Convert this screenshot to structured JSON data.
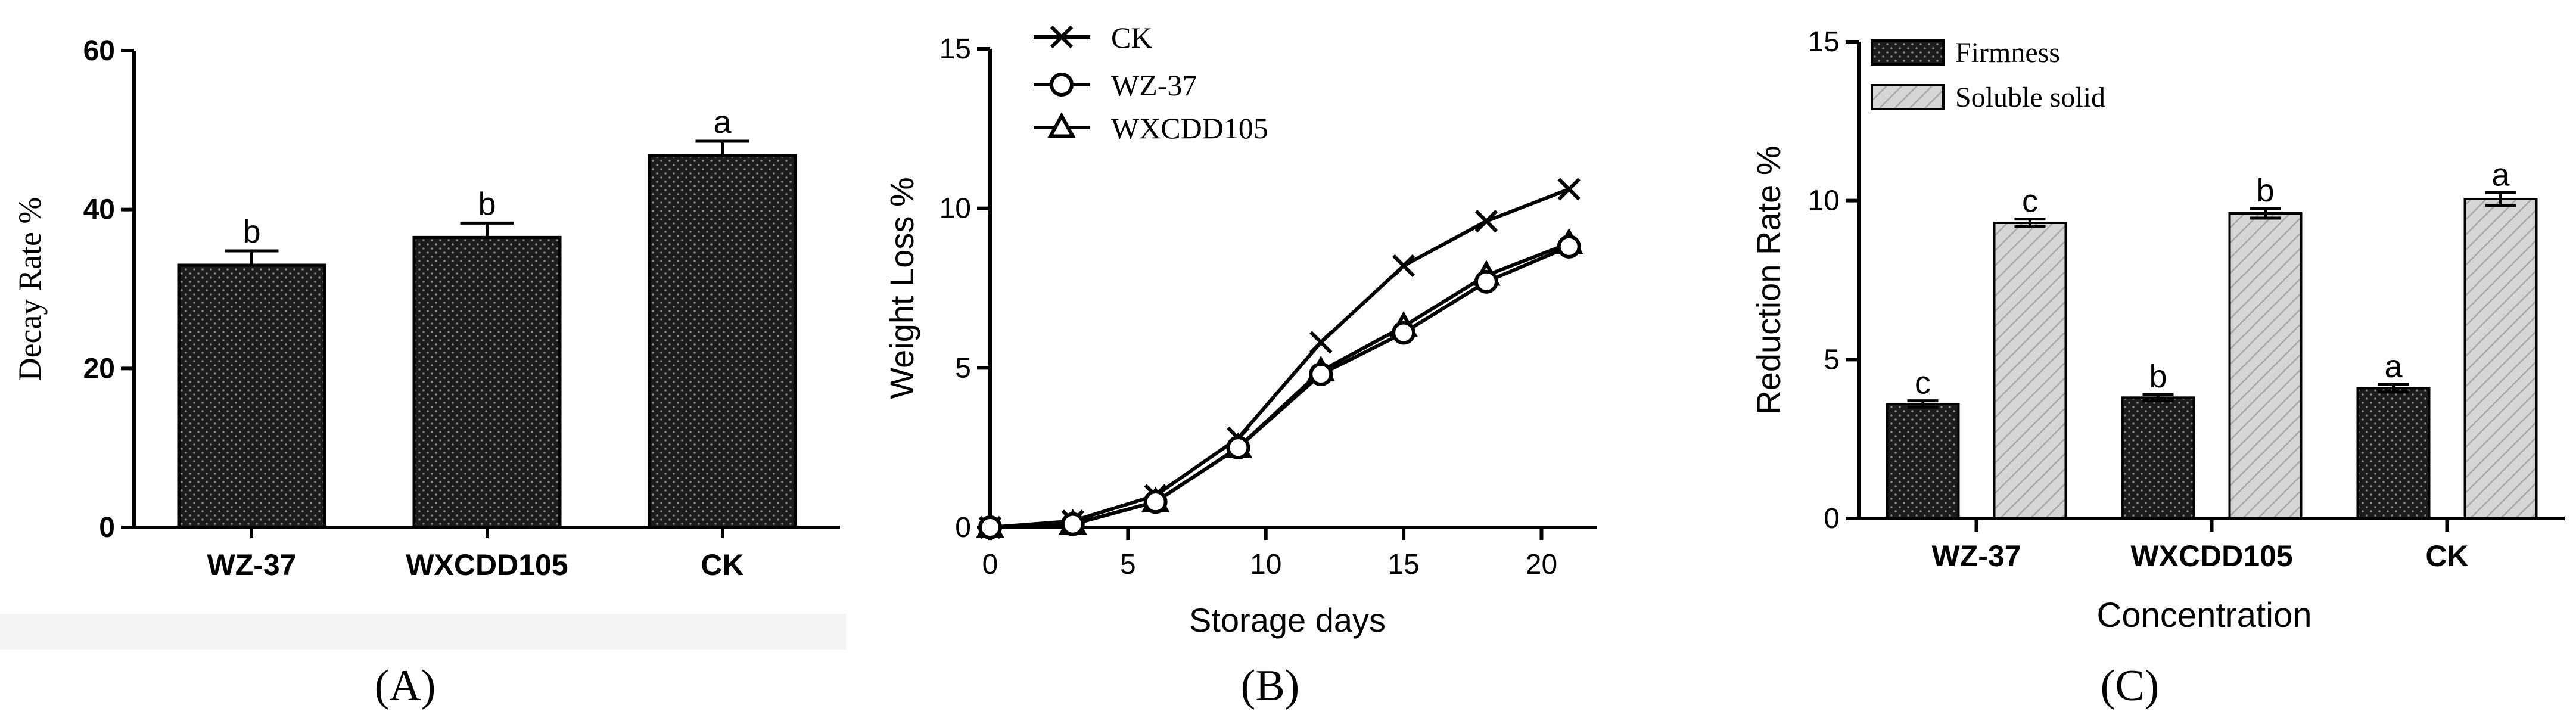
{
  "colors": {
    "firmness_fill": "#1c1c1c",
    "soluble_fill": "#d6d6d6",
    "axis": "#000000",
    "bottom_strip": "#f3f3f3"
  },
  "panel_labels": [
    "(A)",
    "(B)",
    "(C)"
  ],
  "chart_data": [
    {
      "type": "bar",
      "ylabel": "Decay Rate %",
      "xlabel": "",
      "ylim": [
        0,
        60
      ],
      "yticks": [
        "0",
        "20",
        "40",
        "60"
      ],
      "categories": [
        "WZ-37",
        "WXCDD105",
        "CK"
      ],
      "values": [
        33,
        36.5,
        46.8
      ],
      "errors": [
        1.8,
        1.8,
        1.8
      ],
      "annotations": [
        "b",
        "b",
        "a"
      ],
      "grid": false
    },
    {
      "type": "line",
      "xlabel": "Storage days",
      "ylabel": "Weight Loss %",
      "xlim": [
        0,
        22
      ],
      "ylim": [
        0,
        15
      ],
      "xticks": [
        "0",
        "5",
        "10",
        "15",
        "20"
      ],
      "yticks": [
        "0",
        "5",
        "10",
        "15"
      ],
      "x": [
        0,
        3,
        6,
        9,
        12,
        15,
        18,
        21
      ],
      "legend_position": "top-left",
      "series": [
        {
          "name": "CK",
          "marker": "x",
          "values": [
            0,
            0.2,
            1.0,
            2.8,
            5.8,
            8.2,
            9.6,
            10.6
          ]
        },
        {
          "name": "WZ-37",
          "marker": "circle",
          "values": [
            0,
            0.1,
            0.8,
            2.5,
            4.8,
            6.1,
            7.7,
            8.8
          ]
        },
        {
          "name": "WXCDD105",
          "marker": "triangle",
          "values": [
            0,
            0.1,
            0.8,
            2.5,
            4.9,
            6.3,
            7.9,
            8.9
          ]
        }
      ],
      "grid": false
    },
    {
      "type": "bar",
      "xlabel": "Concentration",
      "ylabel": "Reduction Rate %",
      "ylim": [
        0,
        15
      ],
      "yticks": [
        "0",
        "5",
        "10",
        "15"
      ],
      "categories": [
        "WZ-37",
        "WXCDD105",
        "CK"
      ],
      "legend_position": "top-left",
      "series": [
        {
          "name": "Firmness",
          "values": [
            3.6,
            3.8,
            4.1
          ],
          "errors": [
            0.1,
            0.1,
            0.12
          ],
          "annotations": [
            "c",
            "b",
            "a"
          ]
        },
        {
          "name": "Soluble solid",
          "values": [
            9.3,
            9.6,
            10.05
          ],
          "errors": [
            0.12,
            0.15,
            0.2
          ],
          "annotations": [
            "c",
            "b",
            "a"
          ]
        }
      ],
      "grid": false
    }
  ]
}
